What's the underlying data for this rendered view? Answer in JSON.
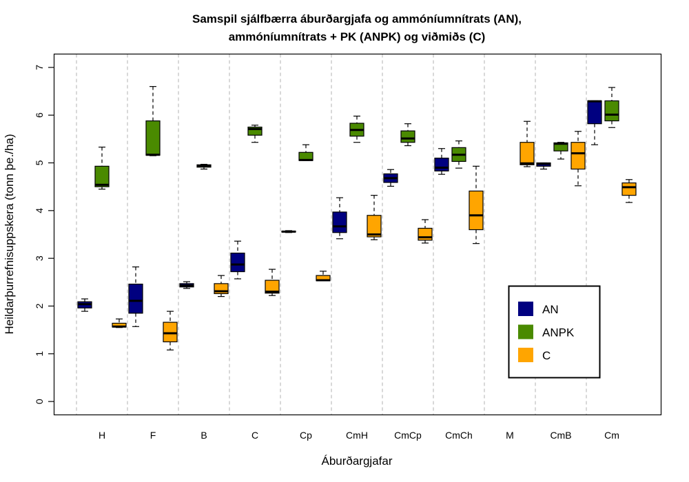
{
  "chart_data": {
    "type": "boxplot",
    "title": [
      "Samspil sjálfbærra áburðargjafa og ammóníumnítrats (AN),",
      "ammóníumnítrats + PK (ANPK) og viðmiðs (C)"
    ],
    "xlabel": "Áburðargjafar",
    "ylabel": "Heildarþurrefnisuppskera (tonn þe./ha)",
    "ylim": [
      -0.28,
      7.28
    ],
    "yticks": [
      0,
      1,
      2,
      3,
      4,
      5,
      6,
      7
    ],
    "grid": "vertical dashed separators between groups",
    "legend_position": "lower-right",
    "categories": [
      "H",
      "F",
      "B",
      "C",
      "Cp",
      "CmH",
      "CmCp",
      "CmCh",
      "M",
      "CmB",
      "Cm"
    ],
    "series": [
      {
        "name": "AN",
        "color": "#000080",
        "boxes": [
          {
            "min": 1.89,
            "q1": 1.96,
            "median": 2.04,
            "q3": 2.09,
            "max": 2.15
          },
          {
            "min": 1.57,
            "q1": 1.85,
            "median": 2.11,
            "q3": 2.46,
            "max": 2.82
          },
          {
            "min": 2.37,
            "q1": 2.4,
            "median": 2.43,
            "q3": 2.47,
            "max": 2.51
          },
          {
            "min": 2.57,
            "q1": 2.72,
            "median": 2.87,
            "q3": 3.11,
            "max": 3.36
          },
          {
            "min": 3.54,
            "q1": 3.55,
            "median": 3.56,
            "q3": 3.57,
            "max": 3.58
          },
          {
            "min": 3.41,
            "q1": 3.54,
            "median": 3.67,
            "q3": 3.97,
            "max": 4.27
          },
          {
            "min": 4.51,
            "q1": 4.59,
            "median": 4.68,
            "q3": 4.77,
            "max": 4.86
          },
          {
            "min": 4.76,
            "q1": 4.83,
            "median": 4.9,
            "q3": 5.1,
            "max": 5.3
          },
          null,
          {
            "min": 4.87,
            "q1": 4.93,
            "median": 4.98,
            "q3": 5.0,
            "max": 5.0
          },
          {
            "min": 5.38,
            "q1": 5.82,
            "median": 6.29,
            "q3": 6.3,
            "max": 6.3
          }
        ]
      },
      {
        "name": "ANPK",
        "color": "#4A8A00",
        "boxes": [
          {
            "min": 4.45,
            "q1": 4.5,
            "median": 4.54,
            "q3": 4.93,
            "max": 5.33
          },
          {
            "min": 5.15,
            "q1": 5.16,
            "median": 5.17,
            "q3": 5.88,
            "max": 6.6
          },
          {
            "min": 4.87,
            "q1": 4.91,
            "median": 4.94,
            "q3": 4.96,
            "max": 4.97
          },
          {
            "min": 5.43,
            "q1": 5.58,
            "median": 5.71,
            "q3": 5.75,
            "max": 5.79
          },
          {
            "min": 5.05,
            "q1": 5.05,
            "median": 5.06,
            "q3": 5.22,
            "max": 5.38
          },
          {
            "min": 5.43,
            "q1": 5.56,
            "median": 5.69,
            "q3": 5.83,
            "max": 5.98
          },
          {
            "min": 5.36,
            "q1": 5.43,
            "median": 5.51,
            "q3": 5.67,
            "max": 5.82
          },
          {
            "min": 4.89,
            "q1": 5.03,
            "median": 5.17,
            "q3": 5.32,
            "max": 5.46
          },
          null,
          {
            "min": 5.08,
            "q1": 5.25,
            "median": 5.4,
            "q3": 5.42,
            "max": 5.43
          },
          {
            "min": 5.74,
            "q1": 5.88,
            "median": 6.01,
            "q3": 6.3,
            "max": 6.58
          }
        ]
      },
      {
        "name": "C",
        "color": "#FFA500",
        "boxes": [
          {
            "min": 1.55,
            "q1": 1.56,
            "median": 1.57,
            "q3": 1.64,
            "max": 1.73
          },
          {
            "min": 1.08,
            "q1": 1.25,
            "median": 1.43,
            "q3": 1.66,
            "max": 1.89
          },
          {
            "min": 2.2,
            "q1": 2.26,
            "median": 2.31,
            "q3": 2.47,
            "max": 2.64
          },
          {
            "min": 2.22,
            "q1": 2.27,
            "median": 2.3,
            "q3": 2.54,
            "max": 2.77
          },
          {
            "min": 2.53,
            "q1": 2.53,
            "median": 2.54,
            "q3": 2.64,
            "max": 2.73
          },
          {
            "min": 3.39,
            "q1": 3.45,
            "median": 3.5,
            "q3": 3.9,
            "max": 4.32
          },
          {
            "min": 3.32,
            "q1": 3.38,
            "median": 3.44,
            "q3": 3.63,
            "max": 3.81
          },
          {
            "min": 3.31,
            "q1": 3.6,
            "median": 3.9,
            "q3": 4.41,
            "max": 4.93
          },
          {
            "min": 4.92,
            "q1": 4.96,
            "median": 4.99,
            "q3": 5.43,
            "max": 5.87
          },
          {
            "min": 4.52,
            "q1": 4.87,
            "median": 5.2,
            "q3": 5.43,
            "max": 5.66
          },
          {
            "min": 4.17,
            "q1": 4.32,
            "median": 4.49,
            "q3": 4.58,
            "max": 4.65
          }
        ]
      }
    ]
  }
}
